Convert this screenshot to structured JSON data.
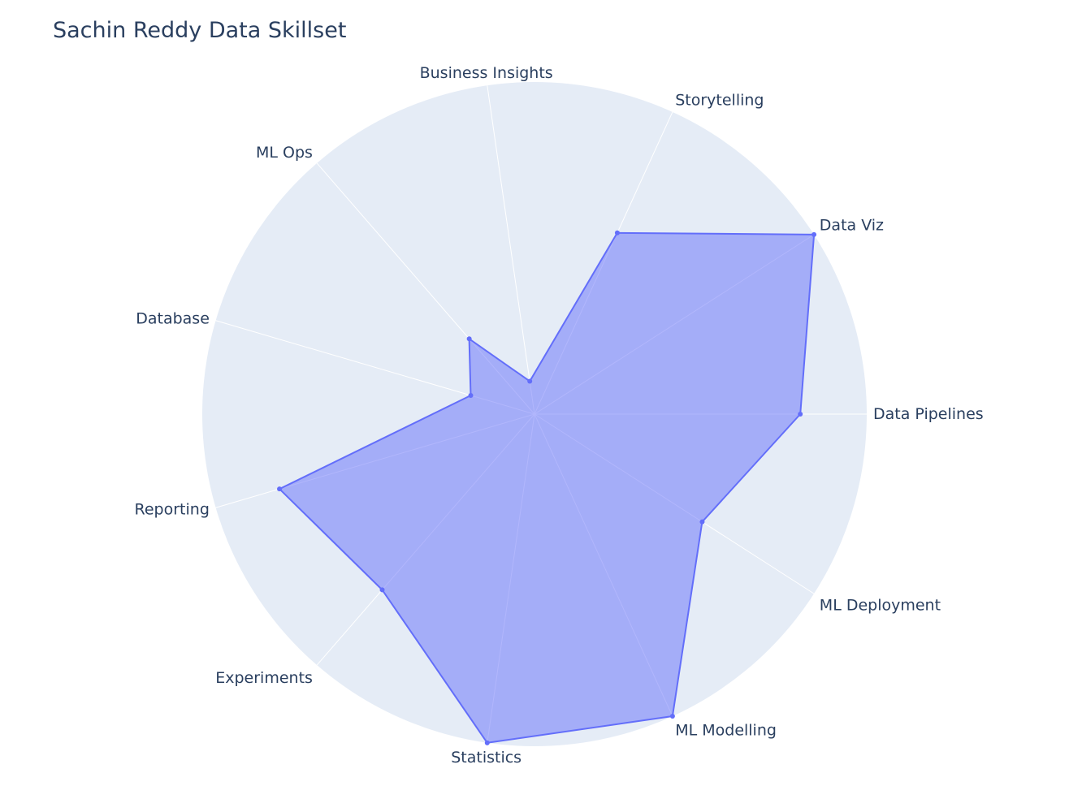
{
  "chart_data": {
    "type": "radar",
    "title": "Sachin Reddy Data Skillset",
    "categories": [
      "Data Pipelines",
      "Data Viz",
      "Storytelling",
      "Business Insights",
      "ML Ops",
      "Database",
      "Reporting",
      "Experiments",
      "Statistics",
      "ML Modelling",
      "ML Deployment"
    ],
    "series": [
      {
        "values": [
          8,
          10,
          6,
          1,
          3,
          2,
          8,
          7,
          10,
          10,
          6
        ]
      }
    ],
    "rlim": [
      0,
      10
    ],
    "grid": true,
    "colors": {
      "fill": "rgba(99,110,250,0.5)",
      "line": "#636efa",
      "polar_bg": "#e5ecf6",
      "grid_line": "#ffffff",
      "text": "#2a3f5f"
    }
  }
}
